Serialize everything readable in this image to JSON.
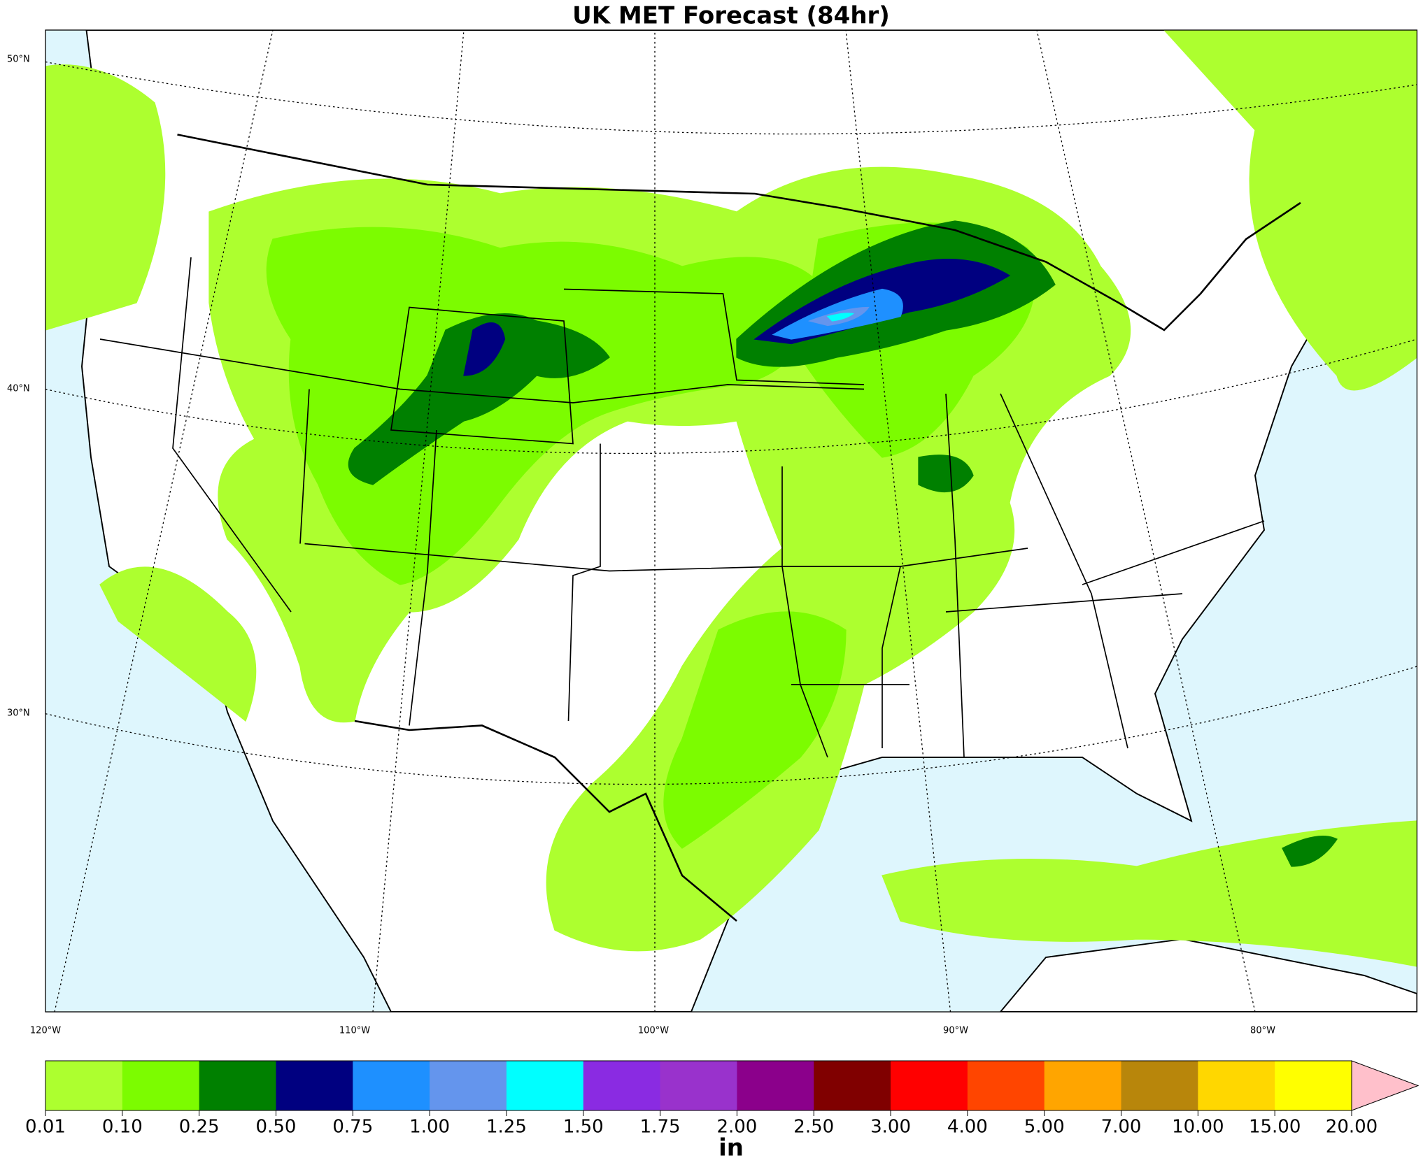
{
  "title": "UK MET Forecast (84hr)",
  "lat_labels": [
    "50°N",
    "40°N",
    "30°N"
  ],
  "lon_labels": [
    "120°W",
    "110°W",
    "100°W",
    "90°W",
    "80°W"
  ],
  "colorbar": {
    "unit": "in",
    "ticks": [
      {
        "value": 0.01,
        "label": "0.01"
      },
      {
        "value": 0.1,
        "label": "0.10"
      },
      {
        "value": 0.25,
        "label": "0.25"
      },
      {
        "value": 0.5,
        "label": "0.50"
      },
      {
        "value": 0.75,
        "label": "0.75"
      },
      {
        "value": 1,
        "label": "1.00"
      },
      {
        "value": 1.25,
        "label": "1.25"
      },
      {
        "value": 1.5,
        "label": "1.50"
      },
      {
        "value": 1.75,
        "label": "1.75"
      },
      {
        "value": 2,
        "label": "2.00"
      },
      {
        "value": 2.5,
        "label": "2.50"
      },
      {
        "value": 3,
        "label": "3.00"
      },
      {
        "value": 4,
        "label": "4.00"
      },
      {
        "value": 5,
        "label": "5.00"
      },
      {
        "value": 7,
        "label": "7.00"
      },
      {
        "value": 10,
        "label": "10.00"
      },
      {
        "value": 15,
        "label": "15.00"
      },
      {
        "value": 20,
        "label": "20.00"
      }
    ],
    "colors": [
      "#adff2f",
      "#7cfc00",
      "#008000",
      "#000080",
      "#1e90ff",
      "#6495ed",
      "#00ffff",
      "#8a2be2",
      "#9932cc",
      "#8b008b",
      "#800000",
      "#ff0000",
      "#ff4500",
      "#ffa500",
      "#b8860b",
      "#ffd700",
      "#ffff00"
    ],
    "extend_color": "#ffc0cb"
  }
}
